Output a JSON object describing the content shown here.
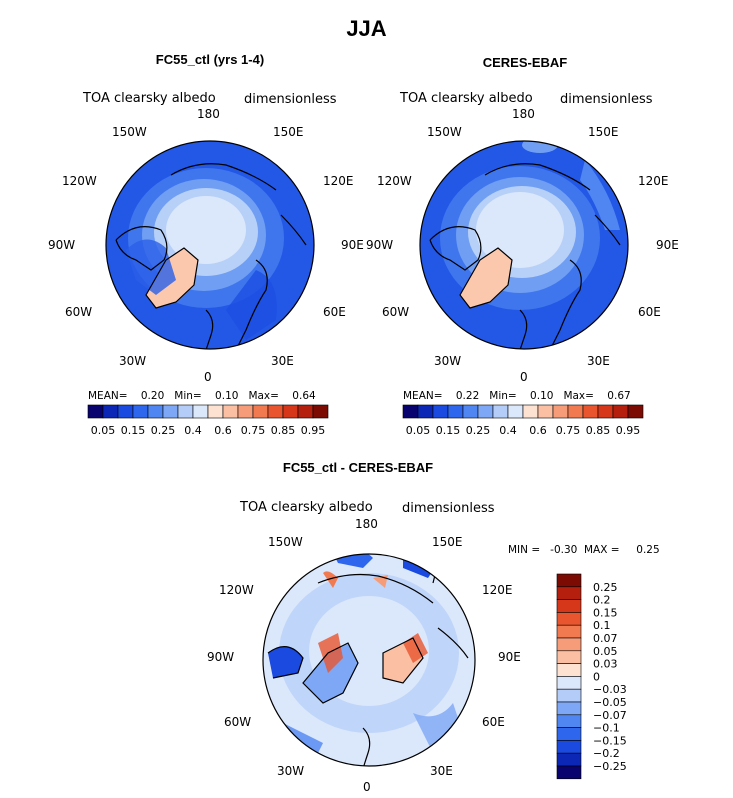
{
  "title": "JJA",
  "panels": [
    {
      "title": "FC55_ctl (yrs 1-4)",
      "var_label": "TOA clearsky albedo",
      "units": "dimensionless",
      "lon_labels": {
        "180": "180",
        "150W": "150W",
        "150E": "150E",
        "120W": "120W",
        "120E": "120E",
        "90W": "90W",
        "90E": "90E",
        "60W": "60W",
        "60E": "60E",
        "30W": "30W",
        "30E": "30E",
        "0": "0"
      },
      "stats": "MEAN=    0.20   Min=    0.10   Max=    0.64"
    },
    {
      "title": "CERES-EBAF",
      "var_label": "TOA clearsky albedo",
      "units": "dimensionless",
      "lon_labels": {
        "180": "180",
        "150W": "150W",
        "150E": "150E",
        "120W": "120W",
        "120E": "120E",
        "90W": "90W",
        "90E": "90E",
        "60W": "60W",
        "60E": "60E",
        "30W": "30W",
        "30E": "30E",
        "0": "0"
      },
      "stats": "MEAN=    0.22   Min=    0.10   Max=    0.67"
    },
    {
      "title": "FC55_ctl - CERES-EBAF",
      "var_label": "TOA clearsky albedo",
      "units": "dimensionless",
      "lon_labels": {
        "180": "180",
        "150W": "150W",
        "150E": "150E",
        "120W": "120W",
        "120E": "120E",
        "90W": "90W",
        "90E": "90E",
        "60W": "60W",
        "60E": "60E",
        "30W": "30W",
        "30E": "30E",
        "0": "0"
      },
      "stats": "MIN =   -0.30  MAX =     0.25"
    }
  ],
  "colorbar_abs": {
    "colors": [
      "#08036e",
      "#0c27b5",
      "#1a4ae0",
      "#2f66ee",
      "#4f86f2",
      "#7ea8f5",
      "#b3cdf8",
      "#dbe7fb",
      "#fde2d2",
      "#fbbfa3",
      "#f79c78",
      "#f27a51",
      "#e9552e",
      "#d6361a",
      "#b5200e",
      "#7c0b04"
    ],
    "labels": [
      "0.05",
      "0.15",
      "0.25",
      "0.4",
      "0.6",
      "0.75",
      "0.85",
      "0.95"
    ]
  },
  "colorbar_diff": {
    "colors": [
      "#7c0b04",
      "#b5200e",
      "#d6361a",
      "#e9552e",
      "#f27a51",
      "#f79c78",
      "#fbbfa3",
      "#fde2d2",
      "#dbe7fb",
      "#b3cdf8",
      "#7ea8f5",
      "#4f86f2",
      "#2f66ee",
      "#1a4ae0",
      "#0c27b5",
      "#08036e"
    ],
    "labels": [
      "0.25",
      "0.2",
      "0.15",
      "0.1",
      "0.07",
      "0.05",
      "0.03",
      "0",
      "−0.03",
      "−0.05",
      "−0.07",
      "−0.1",
      "−0.15",
      "−0.2",
      "−0.25"
    ]
  }
}
